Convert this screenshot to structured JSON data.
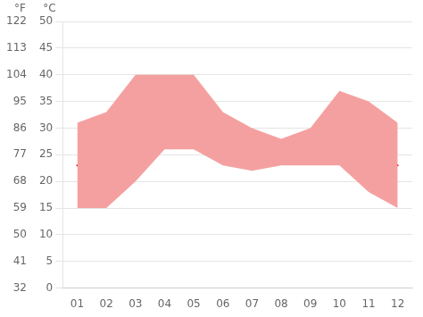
{
  "chart_data": {
    "type": "line",
    "x": [
      1,
      2,
      3,
      4,
      5,
      6,
      7,
      8,
      9,
      10,
      11,
      12
    ],
    "xlim": [
      0.5,
      12.5
    ],
    "xticks": [
      {
        "value": 1,
        "label": "01"
      },
      {
        "value": 2,
        "label": "02"
      },
      {
        "value": 3,
        "label": "03"
      },
      {
        "value": 4,
        "label": "04"
      },
      {
        "value": 5,
        "label": "05"
      },
      {
        "value": 6,
        "label": "06"
      },
      {
        "value": 7,
        "label": "07"
      },
      {
        "value": 8,
        "label": "08"
      },
      {
        "value": 9,
        "label": "09"
      },
      {
        "value": 10,
        "label": "10"
      },
      {
        "value": 11,
        "label": "11"
      },
      {
        "value": 12,
        "label": "12"
      }
    ],
    "ylabel": "°C",
    "ylim": [
      0,
      50
    ],
    "yticks": [
      0,
      5,
      10,
      15,
      20,
      25,
      30,
      35,
      40,
      45,
      50
    ],
    "y2label": "°F",
    "y2lim": [
      32,
      122
    ],
    "y2ticks": [
      32,
      41,
      50,
      59,
      68,
      77,
      86,
      95,
      104,
      113,
      122
    ],
    "grid": "y",
    "series": [
      {
        "type": "area",
        "color": "#f5a0a0",
        "values": [
          31,
          33,
          40,
          40,
          40,
          33,
          30,
          28,
          30,
          37,
          35,
          31
        ],
        "low": [
          15,
          15,
          20,
          26,
          26,
          23,
          22,
          23,
          23,
          23,
          18,
          15
        ]
      },
      {
        "type": "line",
        "color": "#cc0000",
        "values": [
          23,
          23,
          29,
          33,
          34,
          32,
          28,
          26,
          28,
          30,
          27,
          23
        ]
      }
    ]
  }
}
